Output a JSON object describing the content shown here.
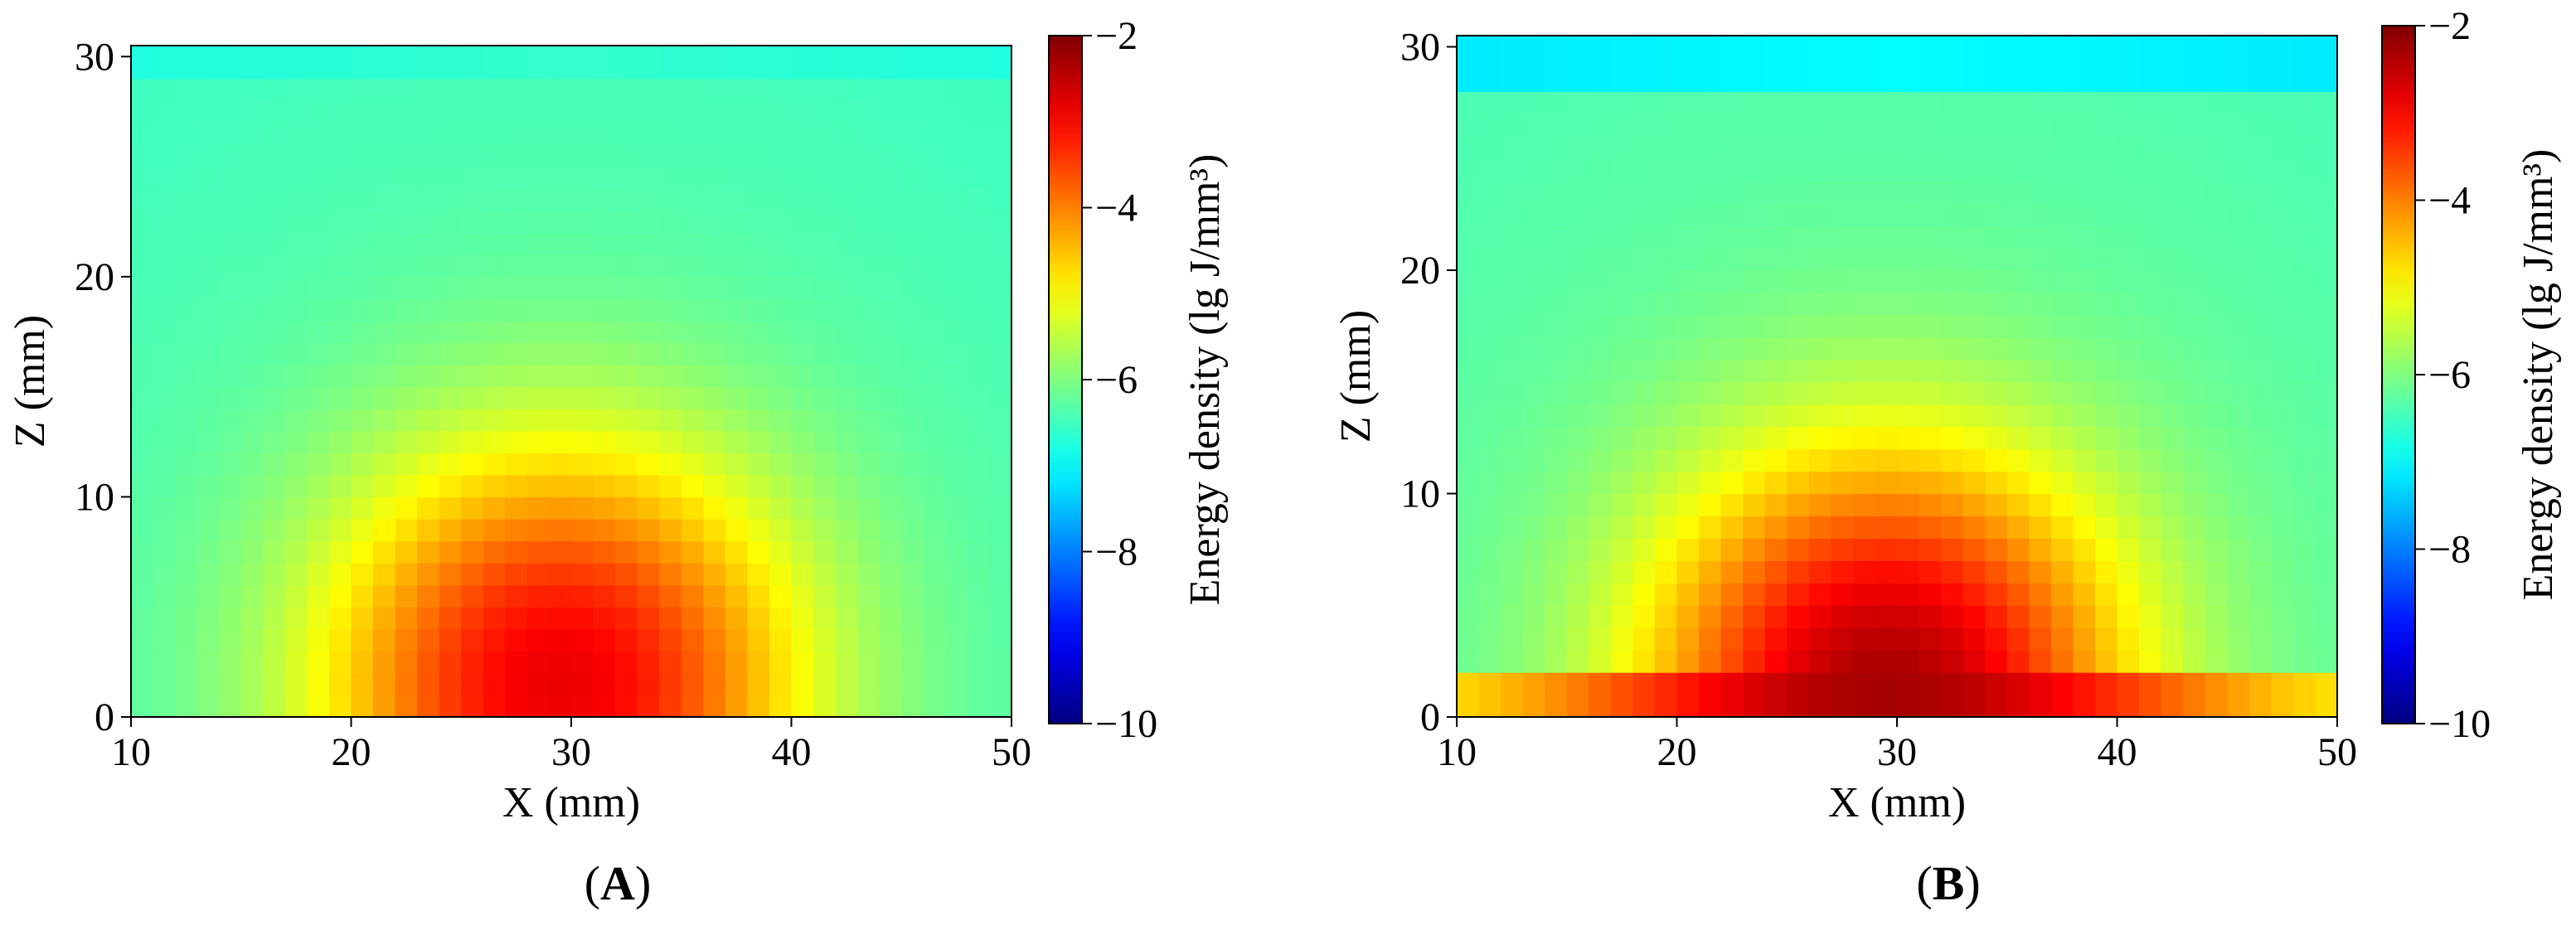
{
  "chart_data": [
    {
      "type": "heatmap",
      "panel_label": "A",
      "xlabel": "X (mm)",
      "ylabel": "Z (mm)",
      "xlim": [
        10,
        50
      ],
      "ylim": [
        0,
        30.5
      ],
      "xticks": [
        10,
        20,
        30,
        40,
        50
      ],
      "yticks": [
        0,
        10,
        20,
        30
      ],
      "colorbar": {
        "label": "Energy density (lg J/mm³)",
        "range": [
          -10,
          -2
        ],
        "ticks": [
          -2,
          -4,
          -6,
          -8,
          -10
        ],
        "colormap": "jet"
      },
      "field": {
        "cell_size_mm": 1,
        "source_center": [
          29.5,
          1.5
        ],
        "peak_value": -2.85,
        "background_value": -6.1,
        "surface_band": {
          "z_range": [
            29.2,
            30.5
          ],
          "value": -6.6
        },
        "bottom_band": null
      }
    },
    {
      "type": "heatmap",
      "panel_label": "B",
      "xlabel": "X (mm)",
      "ylabel": "Z (mm)",
      "xlim": [
        10,
        50
      ],
      "ylim": [
        0,
        30.5
      ],
      "xticks": [
        10,
        20,
        30,
        40,
        50
      ],
      "yticks": [
        0,
        10,
        20,
        30
      ],
      "colorbar": {
        "label": "Energy density (lg J/mm³)",
        "range": [
          -10,
          -2
        ],
        "ticks": [
          -2,
          -4,
          -6,
          -8,
          -10
        ],
        "colormap": "jet"
      },
      "field": {
        "cell_size_mm": 1,
        "source_center": [
          29.5,
          1.0
        ],
        "peak_value": -2.3,
        "background_value": -6.0,
        "surface_band": {
          "z_range": [
            28.2,
            30.5
          ],
          "value": -7.0
        },
        "bottom_band": {
          "z_range": [
            0,
            1.5
          ],
          "value": -5.4
        }
      }
    }
  ]
}
